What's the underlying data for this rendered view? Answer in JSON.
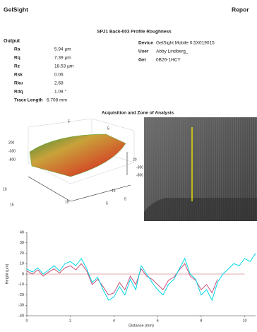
{
  "header": {
    "brand": "GelSight",
    "report": "Repor"
  },
  "title": "SPJ1 Back-003  Profile Roughness",
  "output": {
    "heading": "Output",
    "rows": [
      [
        "Ra",
        "5.94 µm"
      ],
      [
        "Rq",
        "7.39 µm"
      ],
      [
        "Rz",
        "18.53 µm"
      ],
      [
        "Rsk",
        "0.06"
      ],
      [
        "Rku",
        "2.68"
      ],
      [
        "Rdq",
        "1.08 °"
      ],
      [
        "Trace Length",
        "6.708 mm"
      ]
    ]
  },
  "info": {
    "rows": [
      [
        "Device",
        "GelSight Mobile 0.5X019015"
      ],
      [
        "User",
        "Abby Lindberg_"
      ],
      [
        "Gel",
        "0B26-1HCY"
      ]
    ]
  },
  "section_title": "Acquisition and Zone of Analysis",
  "surface_plot": {
    "labels": [
      "5",
      "5",
      "200",
      "-300",
      "-800",
      "20",
      "-300",
      "-800",
      "10",
      "15",
      "15",
      "5",
      "16",
      "5"
    ]
  },
  "chart_data": {
    "type": "line",
    "xlabel": "Distance (mm)",
    "ylabel": "Height (µm)",
    "x": [
      0,
      0.25,
      0.5,
      0.75,
      1,
      1.25,
      1.5,
      1.75,
      2,
      2.25,
      2.5,
      2.75,
      3,
      3.25,
      3.5,
      3.75,
      4,
      4.25,
      4.5,
      4.75,
      5,
      5.25,
      5.5,
      5.75,
      6,
      6.25,
      6.5,
      6.75,
      7,
      7.25,
      7.5,
      7.75,
      8,
      8.25,
      8.5,
      8.75,
      9,
      9.25,
      9.5,
      9.75,
      10,
      10.25,
      10.5
    ],
    "series": [
      {
        "color": "#00d8e8",
        "values": [
          5,
          2,
          6,
          0,
          4,
          8,
          3,
          10,
          12,
          8,
          15,
          5,
          -8,
          -3,
          -15,
          -25,
          -22,
          -12,
          -20,
          -5,
          -15,
          8,
          0,
          -8,
          -15,
          -20,
          -10,
          -5,
          5,
          15,
          0,
          -5,
          -20,
          -15,
          -25,
          -8,
          0,
          5,
          10,
          8,
          15,
          12,
          20
        ]
      },
      {
        "color": "#c8507a",
        "values": [
          3,
          0,
          4,
          -2,
          2,
          5,
          1,
          6,
          8,
          4,
          10,
          3,
          -10,
          -5,
          -12,
          -20,
          -18,
          -8,
          -15,
          -2,
          -10,
          5,
          -2,
          -5,
          -10,
          -15,
          -6,
          -3,
          4,
          10,
          -2,
          -6,
          -15,
          -10,
          -18,
          -5,
          null,
          null,
          null,
          null,
          null,
          null,
          null
        ]
      },
      {
        "color": "#d98c8c",
        "values": [
          0,
          0,
          0,
          0,
          0,
          0,
          0,
          0,
          0,
          0,
          0,
          0,
          0,
          0,
          0,
          0,
          0,
          0,
          0,
          0,
          0,
          0,
          0,
          0,
          0,
          0,
          0,
          0,
          0,
          0,
          0,
          0,
          0,
          0,
          0,
          0,
          0,
          0,
          0,
          0,
          0,
          null,
          null
        ]
      }
    ],
    "xlim": [
      0,
      10.5
    ],
    "ylim": [
      -40,
      40
    ],
    "xticks": [
      0,
      2,
      4,
      6,
      8,
      10
    ],
    "yticks": [
      -40,
      -30,
      -20,
      -10,
      0,
      10,
      20,
      30,
      40
    ]
  }
}
